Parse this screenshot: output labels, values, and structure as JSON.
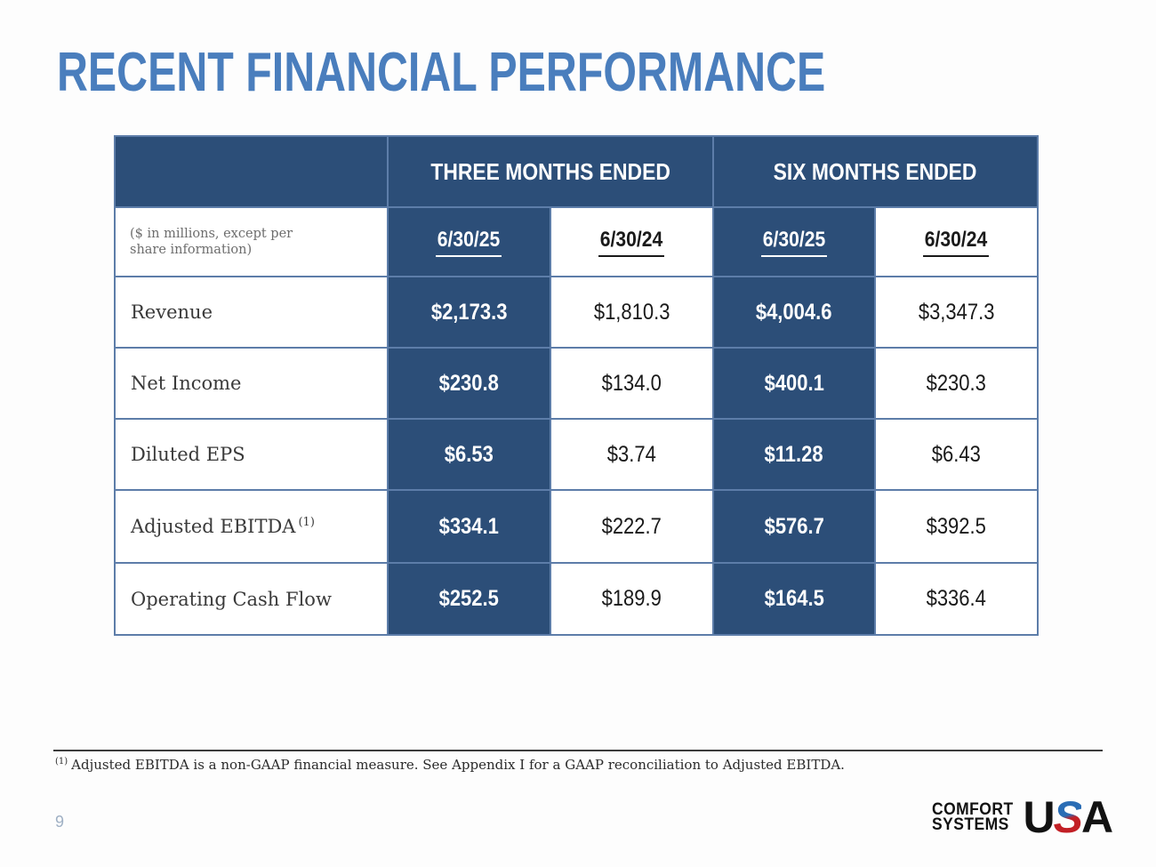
{
  "slide": {
    "title": "RECENT FINANCIAL PERFORMANCE",
    "page_number": "9",
    "footnote_marker": "(1)",
    "footnote_text": "Adjusted EBITDA is a non-GAAP financial measure. See Appendix I for a GAAP reconciliation to Adjusted EBITDA."
  },
  "colors": {
    "title_blue": "#4A7EBD",
    "table_dark_blue": "#2C4E78",
    "table_border_blue": "#5D7DA9",
    "logo_red": "#C22026",
    "logo_blue": "#2A6DB5"
  },
  "table": {
    "note": "($ in millions, except per share information)",
    "group_headers": [
      {
        "label": "THREE MONTHS ENDED"
      },
      {
        "label": "SIX MONTHS ENDED"
      }
    ],
    "column_headers": [
      "6/30/25",
      "6/30/24",
      "6/30/25",
      "6/30/24"
    ],
    "rows": [
      {
        "label": "Revenue",
        "values": [
          "$2,173.3",
          "$1,810.3",
          "$4,004.6",
          "$3,347.3"
        ]
      },
      {
        "label": "Net Income",
        "values": [
          "$230.8",
          "$134.0",
          "$400.1",
          "$230.3"
        ]
      },
      {
        "label": "Diluted EPS",
        "values": [
          "$6.53",
          "$3.74",
          "$11.28",
          "$6.43"
        ]
      },
      {
        "label": "Adjusted EBITDA",
        "label_suffix": "(1)",
        "values": [
          "$334.1",
          "$222.7",
          "$576.7",
          "$392.5"
        ]
      },
      {
        "label": "Operating Cash Flow",
        "values": [
          "$252.5",
          "$189.9",
          "$164.5",
          "$336.4"
        ]
      }
    ]
  },
  "logo": {
    "line1": "COMFORT",
    "line2": "SYSTEMS",
    "u": "U",
    "s": "S",
    "a": "A"
  }
}
